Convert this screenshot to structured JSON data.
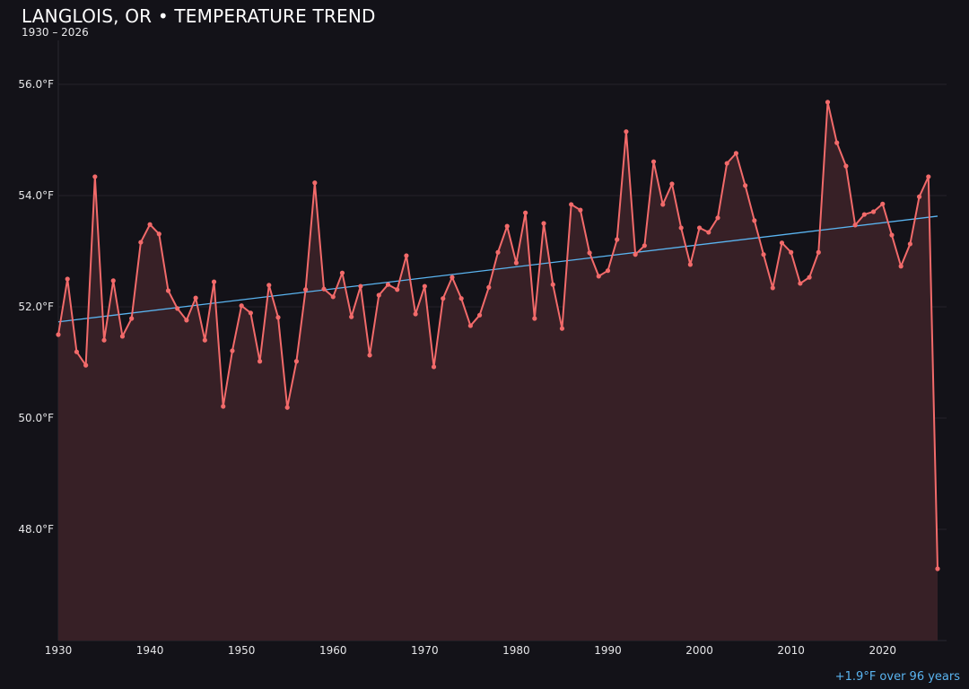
{
  "chart_data": {
    "type": "line",
    "title": "LANGLOIS, OR • TEMPERATURE TREND",
    "subtitle": "1930 – 2026",
    "annotation": "+1.9°F over 96 years",
    "xlabel": "",
    "ylabel": "",
    "xlim": [
      1930,
      2026
    ],
    "ylim": [
      46.0,
      57.0
    ],
    "grid": true,
    "x_ticks": [
      "1930",
      "1940",
      "1950",
      "1960",
      "1970",
      "1980",
      "1990",
      "2000",
      "2010",
      "2020"
    ],
    "y_ticks": [
      "48.0°F",
      "50.0°F",
      "52.0°F",
      "54.0°F",
      "56.0°F"
    ],
    "colors": {
      "series": "#f26a6a",
      "fill": "#372026",
      "trend": "#5ab4f0",
      "background": "#131218",
      "grid": "#24222a"
    },
    "series": [
      {
        "x": [
          1930,
          1931,
          1932,
          1933,
          1934,
          1935,
          1936,
          1937,
          1938,
          1939,
          1940,
          1941,
          1942,
          1943,
          1944,
          1945,
          1946,
          1947,
          1948,
          1949,
          1950,
          1951,
          1952,
          1953,
          1954,
          1955,
          1956,
          1957,
          1958,
          1959,
          1960,
          1961,
          1962,
          1963,
          1964,
          1965,
          1966,
          1967,
          1968,
          1969,
          1970,
          1971,
          1972,
          1973,
          1974,
          1975,
          1976,
          1977,
          1978,
          1979,
          1980,
          1981,
          1982,
          1983,
          1984,
          1985,
          1986,
          1987,
          1988,
          1989,
          1990,
          1991,
          1992,
          1993,
          1994,
          1995,
          1996,
          1997,
          1998,
          1999,
          2000,
          2001,
          2002,
          2003,
          2004,
          2005,
          2006,
          2007,
          2008,
          2009,
          2010,
          2011,
          2012,
          2013,
          2014,
          2015,
          2016,
          2017,
          2018,
          2019,
          2020,
          2021,
          2022,
          2023,
          2024,
          2025,
          2026
        ],
        "values": [
          51.5,
          52.5,
          51.19,
          50.95,
          54.34,
          51.4,
          52.47,
          51.47,
          51.79,
          53.16,
          53.48,
          53.31,
          52.29,
          51.97,
          51.76,
          52.16,
          51.4,
          52.45,
          50.21,
          51.21,
          52.02,
          51.89,
          51.02,
          52.39,
          51.81,
          50.19,
          51.02,
          52.31,
          54.23,
          52.32,
          52.18,
          52.61,
          51.82,
          52.37,
          51.13,
          52.21,
          52.4,
          52.31,
          52.92,
          51.87,
          52.37,
          50.92,
          52.15,
          52.53,
          52.15,
          51.66,
          51.85,
          52.35,
          52.98,
          53.45,
          52.79,
          53.69,
          51.79,
          53.5,
          52.4,
          51.61,
          53.84,
          53.74,
          52.97,
          52.55,
          52.65,
          53.21,
          55.15,
          52.94,
          53.1,
          54.61,
          53.84,
          54.21,
          53.42,
          52.76,
          53.42,
          53.34,
          53.6,
          54.58,
          54.76,
          54.18,
          53.55,
          52.94,
          52.34,
          53.15,
          52.98,
          52.42,
          52.53,
          52.98,
          55.68,
          54.95,
          54.53,
          53.47,
          53.66,
          53.71,
          53.85,
          53.29,
          52.73,
          53.13,
          53.98,
          54.34,
          47.29
        ]
      }
    ],
    "trend": {
      "x": [
        1930,
        2026
      ],
      "values": [
        51.73,
        53.63
      ]
    }
  }
}
